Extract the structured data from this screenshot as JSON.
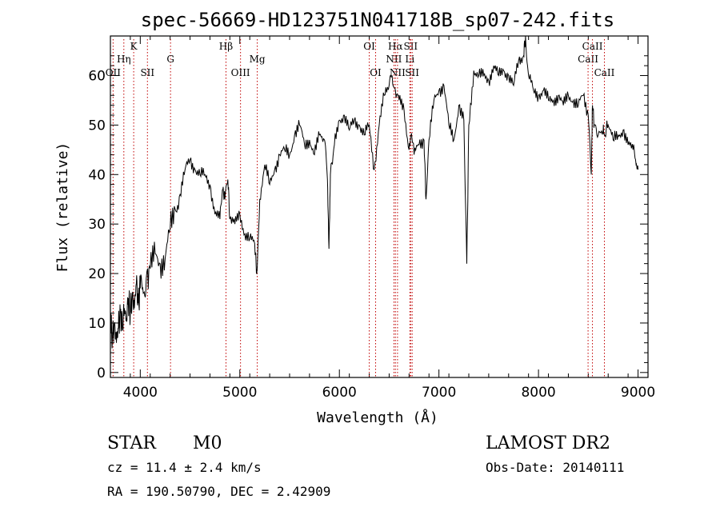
{
  "chart_data": {
    "type": "line",
    "title": "spec-56669-HD123751N041718B_sp07-242.fits",
    "xlabel": "Wavelength (Å)",
    "ylabel": "Flux (relative)",
    "xlim": [
      3700,
      9100
    ],
    "ylim": [
      -1,
      68
    ],
    "xticks": [
      4000,
      5000,
      6000,
      7000,
      8000,
      9000
    ],
    "yticks": [
      0,
      10,
      20,
      30,
      40,
      50,
      60
    ],
    "grid": false,
    "line_color": "#000000",
    "marker_color": "#c00000",
    "series": [
      {
        "x": [
          3700,
          3720,
          3740,
          3760,
          3780,
          3800,
          3820,
          3840,
          3860,
          3880,
          3900,
          3920,
          3940,
          3960,
          3980,
          4000,
          4030,
          4060,
          4100,
          4150,
          4200,
          4250,
          4300,
          4350,
          4400,
          4450,
          4500,
          4550,
          4600,
          4650,
          4700,
          4750,
          4800,
          4830,
          4850,
          4880,
          4900,
          4950,
          5000,
          5050,
          5100,
          5150,
          5170,
          5200,
          5250,
          5300,
          5350,
          5400,
          5450,
          5500,
          5550,
          5600,
          5650,
          5700,
          5750,
          5800,
          5850,
          5880,
          5895,
          5910,
          5950,
          6000,
          6050,
          6100,
          6150,
          6200,
          6250,
          6300,
          6350,
          6400,
          6450,
          6500,
          6530,
          6563,
          6600,
          6650,
          6700,
          6720,
          6750,
          6800,
          6850,
          6870,
          6900,
          6950,
          7000,
          7050,
          7100,
          7150,
          7200,
          7250,
          7280,
          7300,
          7350,
          7400,
          7450,
          7500,
          7550,
          7600,
          7650,
          7700,
          7750,
          7800,
          7850,
          7870,
          7900,
          7950,
          8000,
          8050,
          8100,
          8150,
          8200,
          8250,
          8300,
          8350,
          8400,
          8450,
          8500,
          8530,
          8542,
          8560,
          8600,
          8650,
          8662,
          8700,
          8750,
          8800,
          8850,
          8900,
          8950,
          8980,
          9000
        ],
        "y": [
          11,
          7,
          10,
          6,
          9,
          12,
          9,
          13,
          11,
          15,
          12,
          16,
          13,
          18,
          14,
          17,
          16,
          19,
          21,
          24,
          22,
          23,
          29,
          33,
          36,
          41,
          43,
          41,
          40,
          40,
          38,
          32,
          31,
          37,
          35,
          39,
          31,
          30,
          32,
          28,
          27,
          26,
          20,
          35,
          42,
          38,
          41,
          44,
          45,
          44,
          48,
          50,
          46,
          47,
          44,
          48,
          47,
          39,
          25,
          40,
          46,
          51,
          52,
          49,
          51,
          50,
          48,
          50,
          41,
          50,
          56,
          58,
          60,
          57,
          55,
          53,
          45,
          48,
          44,
          46,
          47,
          35,
          47,
          55,
          57,
          58,
          50,
          47,
          54,
          51,
          22,
          50,
          61,
          60,
          60,
          59,
          62,
          60,
          61,
          60,
          58,
          63,
          64,
          68,
          60,
          57,
          56,
          57,
          55,
          55,
          56,
          54,
          56,
          55,
          54,
          56,
          52,
          40,
          54,
          50,
          48,
          49,
          48,
          50,
          47,
          48,
          49,
          46,
          45,
          42,
          41
        ]
      }
    ],
    "lines": [
      {
        "wave": 3727,
        "label": "OII",
        "row": 3
      },
      {
        "wave": 3835,
        "label": "Hη",
        "row": 2
      },
      {
        "wave": 3934,
        "label": "K",
        "row": 1
      },
      {
        "wave": 4072,
        "label": "SII",
        "row": 3
      },
      {
        "wave": 4304,
        "label": "G",
        "row": 2
      },
      {
        "wave": 4861,
        "label": "Hβ",
        "row": 1
      },
      {
        "wave": 5007,
        "label": "OIII",
        "row": 3
      },
      {
        "wave": 5175,
        "label": "Mg",
        "row": 2
      },
      {
        "wave": 6300,
        "label": "OI",
        "row": 1
      },
      {
        "wave": 6364,
        "label": "OI",
        "row": 3
      },
      {
        "wave": 6548,
        "label": "NII",
        "row": 2
      },
      {
        "wave": 6563,
        "label": "Hα",
        "row": 1
      },
      {
        "wave": 6584,
        "label": "NII",
        "row": 3
      },
      {
        "wave": 6708,
        "label": "Li",
        "row": 2
      },
      {
        "wave": 6716,
        "label": "SII",
        "row": 1
      },
      {
        "wave": 6731,
        "label": "SII",
        "row": 3
      },
      {
        "wave": 8498,
        "label": "CaII",
        "row": 2
      },
      {
        "wave": 8542,
        "label": "CaII",
        "row": 1
      },
      {
        "wave": 8662,
        "label": "CaII",
        "row": 3
      }
    ]
  },
  "info": {
    "class_label": "STAR",
    "subclass_label": "M0",
    "survey": "LAMOST DR2",
    "cz": "cz = 11.4 ± 2.4 km/s",
    "obs_date": "Obs-Date: 20140111",
    "coords": "RA = 190.50790, DEC =   2.42909"
  }
}
